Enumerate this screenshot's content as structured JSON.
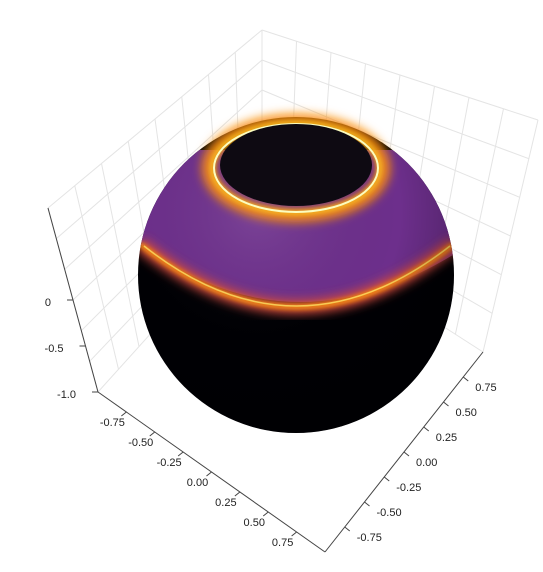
{
  "chart_data": {
    "type": "surface",
    "title": "",
    "colormap": "inferno",
    "colors": {
      "band_peak": "#fcfdbf",
      "band_mid": "#f98c0a",
      "band_low": "#bc3754",
      "surface": "#6a2a8e",
      "dark": "#000004",
      "cap": "#0e0a12"
    },
    "surface": "sphere",
    "rings": [
      {
        "position": "upper",
        "intensity": 1.0
      },
      {
        "position": "equator",
        "intensity": 0.85
      }
    ],
    "axes": {
      "x": {
        "range": [
          -1,
          1
        ],
        "ticks": [
          "-0.75",
          "-0.50",
          "-0.25",
          "0.00",
          "0.25",
          "0.50",
          "0.75"
        ]
      },
      "y": {
        "range": [
          -1,
          1
        ],
        "ticks": [
          "-0.75",
          "-0.50",
          "-0.25",
          "0.00",
          "0.25",
          "0.50",
          "0.75"
        ]
      },
      "z": {
        "range": [
          -1,
          1
        ],
        "ticks": [
          "-1.0",
          "-0.5",
          "0"
        ]
      }
    },
    "grid": true
  }
}
